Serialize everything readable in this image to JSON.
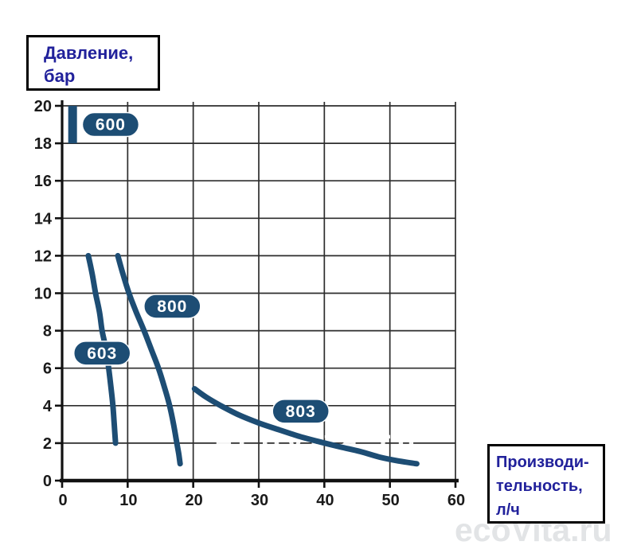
{
  "page": {
    "background": "#ffffff"
  },
  "pressure_label": {
    "line1": "Давление,",
    "line2": "бар"
  },
  "flow_label": {
    "line1": "Производи-",
    "line2": "тельность,",
    "line3": "л/ч"
  },
  "watermark": {
    "text": "ecoVita.ru"
  },
  "colors": {
    "curve": "#1d4d74",
    "pill_fill": "#1d4d74",
    "pill_text": "#ffffff",
    "grid": "#2d2d2d",
    "axis": "#111111",
    "tick_text": "#1a1a1a",
    "label_text": "#21219b",
    "watermark": "#e2e4e6",
    "grid_watermark": "#ffffff"
  },
  "chart_data": {
    "type": "line",
    "title": "",
    "xlabel": "Производительность, л/ч",
    "ylabel": "Давление, бар",
    "xlim": [
      0,
      60
    ],
    "ylim": [
      0,
      20
    ],
    "x_ticks": [
      0,
      10,
      20,
      30,
      40,
      50,
      60
    ],
    "y_ticks": [
      0,
      2,
      4,
      6,
      8,
      10,
      12,
      14,
      16,
      18,
      20
    ],
    "grid": true,
    "legend_position": "inline-pills",
    "grid_watermark_text": "ecovita.ru",
    "series": [
      {
        "name": "600",
        "label": "600",
        "label_pos": [
          7.4,
          19.0
        ],
        "stroke_width": 11,
        "linecap": "butt",
        "points": [
          [
            1.6,
            18.0
          ],
          [
            1.6,
            20.0
          ]
        ]
      },
      {
        "name": "603",
        "label": "603",
        "label_pos": [
          6.1,
          6.8
        ],
        "stroke_width": 7,
        "linecap": "round",
        "points": [
          [
            4.0,
            12.0
          ],
          [
            4.6,
            11.0
          ],
          [
            5.1,
            10.0
          ],
          [
            5.7,
            9.0
          ],
          [
            6.1,
            8.0
          ],
          [
            6.7,
            7.0
          ],
          [
            7.1,
            6.0
          ],
          [
            7.45,
            5.0
          ],
          [
            7.75,
            4.0
          ],
          [
            7.95,
            3.0
          ],
          [
            8.15,
            2.0
          ]
        ]
      },
      {
        "name": "800",
        "label": "800",
        "label_pos": [
          16.8,
          9.3
        ],
        "stroke_width": 7,
        "linecap": "round",
        "points": [
          [
            8.5,
            12.0
          ],
          [
            9.3,
            11.0
          ],
          [
            10.2,
            10.0
          ],
          [
            11.3,
            9.0
          ],
          [
            12.5,
            8.0
          ],
          [
            13.6,
            7.0
          ],
          [
            14.7,
            6.0
          ],
          [
            15.6,
            5.0
          ],
          [
            16.4,
            4.0
          ],
          [
            17.0,
            3.0
          ],
          [
            17.5,
            2.0
          ],
          [
            17.8,
            1.4
          ],
          [
            18.0,
            0.9
          ]
        ]
      },
      {
        "name": "803",
        "label": "803",
        "label_pos": [
          36.4,
          3.7
        ],
        "stroke_width": 7,
        "linecap": "round",
        "points": [
          [
            20.2,
            4.9
          ],
          [
            22.0,
            4.45
          ],
          [
            24.2,
            4.0
          ],
          [
            27.0,
            3.5
          ],
          [
            30.2,
            3.05
          ],
          [
            33.2,
            2.7
          ],
          [
            36.3,
            2.35
          ],
          [
            39.5,
            2.05
          ],
          [
            42.4,
            1.8
          ],
          [
            45.5,
            1.55
          ],
          [
            48.5,
            1.25
          ],
          [
            51.3,
            1.05
          ],
          [
            54.1,
            0.9
          ]
        ]
      }
    ]
  }
}
